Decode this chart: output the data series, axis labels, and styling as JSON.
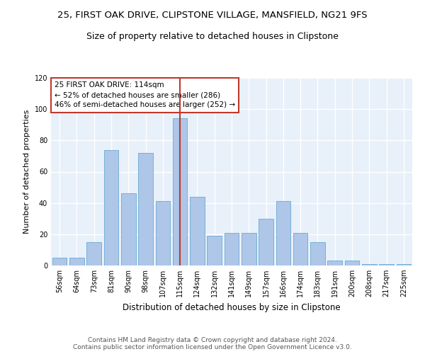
{
  "title1": "25, FIRST OAK DRIVE, CLIPSTONE VILLAGE, MANSFIELD, NG21 9FS",
  "title2": "Size of property relative to detached houses in Clipstone",
  "xlabel": "Distribution of detached houses by size in Clipstone",
  "ylabel": "Number of detached properties",
  "footer1": "Contains HM Land Registry data © Crown copyright and database right 2024.",
  "footer2": "Contains public sector information licensed under the Open Government Licence v3.0.",
  "categories": [
    "56sqm",
    "64sqm",
    "73sqm",
    "81sqm",
    "90sqm",
    "98sqm",
    "107sqm",
    "115sqm",
    "124sqm",
    "132sqm",
    "141sqm",
    "149sqm",
    "157sqm",
    "166sqm",
    "174sqm",
    "183sqm",
    "191sqm",
    "200sqm",
    "208sqm",
    "217sqm",
    "225sqm"
  ],
  "values": [
    5,
    5,
    15,
    74,
    46,
    72,
    41,
    94,
    44,
    19,
    21,
    21,
    30,
    41,
    21,
    15,
    3,
    3,
    1,
    1,
    1
  ],
  "bar_color": "#aec6e8",
  "bar_edge_color": "#6aaad4",
  "highlight_index": 7,
  "highlight_line_color": "#c0392b",
  "annotation_line1": "25 FIRST OAK DRIVE: 114sqm",
  "annotation_line2": "← 52% of detached houses are smaller (286)",
  "annotation_line3": "46% of semi-detached houses are larger (252) →",
  "annotation_box_color": "#c0392b",
  "annotation_fill": "#ffffff",
  "ylim": [
    0,
    120
  ],
  "yticks": [
    0,
    20,
    40,
    60,
    80,
    100,
    120
  ],
  "background_color": "#e8f0fa",
  "grid_color": "#ffffff",
  "title1_fontsize": 9.5,
  "title2_fontsize": 9,
  "xlabel_fontsize": 8.5,
  "ylabel_fontsize": 8,
  "tick_fontsize": 7,
  "footer_fontsize": 6.5
}
